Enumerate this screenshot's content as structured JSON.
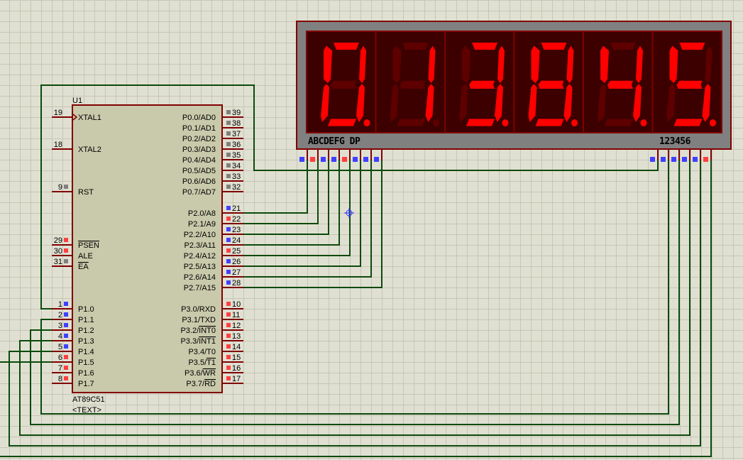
{
  "colors": {
    "wire": "#0b4a0b",
    "pin": "#800000",
    "chip_fill": "#c9c9ab",
    "display_body": "#808080",
    "display_bg": "#3c0000",
    "seg_on": "#ff0000",
    "seg_off": "#5e0000",
    "pin_blue": "#4040ff",
    "pin_red": "#ff4040",
    "pin_grey": "#808080"
  },
  "chip": {
    "ref": "U1",
    "part": "AT89C51",
    "text_placeholder": "<TEXT>",
    "left_pins": [
      {
        "num": "19",
        "label": "XTAL1",
        "state": "clock"
      },
      {
        "num": "18",
        "label": "XTAL2",
        "state": "none"
      },
      {
        "num": "9",
        "label": "RST",
        "state": "grey"
      },
      {
        "num": "29",
        "label": "",
        "bar": "PSEN",
        "state": "red"
      },
      {
        "num": "30",
        "label": "ALE",
        "state": "red"
      },
      {
        "num": "31",
        "label": "",
        "bar": "EA",
        "state": "grey"
      },
      {
        "num": "1",
        "label": "P1.0",
        "state": "blue"
      },
      {
        "num": "2",
        "label": "P1.1",
        "state": "blue"
      },
      {
        "num": "3",
        "label": "P1.2",
        "state": "blue"
      },
      {
        "num": "4",
        "label": "P1.3",
        "state": "blue"
      },
      {
        "num": "5",
        "label": "P1.4",
        "state": "blue"
      },
      {
        "num": "6",
        "label": "P1.5",
        "state": "red"
      },
      {
        "num": "7",
        "label": "P1.6",
        "state": "red"
      },
      {
        "num": "8",
        "label": "P1.7",
        "state": "red"
      }
    ],
    "right_pins": [
      {
        "num": "39",
        "label": "P0.0/AD0",
        "state": "grey"
      },
      {
        "num": "38",
        "label": "P0.1/AD1",
        "state": "grey"
      },
      {
        "num": "37",
        "label": "P0.2/AD2",
        "state": "grey"
      },
      {
        "num": "36",
        "label": "P0.3/AD3",
        "state": "grey"
      },
      {
        "num": "35",
        "label": "P0.4/AD4",
        "state": "grey"
      },
      {
        "num": "34",
        "label": "P0.5/AD5",
        "state": "grey"
      },
      {
        "num": "33",
        "label": "P0.6/AD6",
        "state": "grey"
      },
      {
        "num": "32",
        "label": "P0.7/AD7",
        "state": "grey"
      },
      {
        "num": "21",
        "label": "P2.0/A8",
        "state": "blue"
      },
      {
        "num": "22",
        "label": "P2.1/A9",
        "state": "red"
      },
      {
        "num": "23",
        "label": "P2.2/A10",
        "state": "blue"
      },
      {
        "num": "24",
        "label": "P2.3/A11",
        "state": "blue"
      },
      {
        "num": "25",
        "label": "P2.4/A12",
        "state": "red"
      },
      {
        "num": "26",
        "label": "P2.5/A13",
        "state": "blue"
      },
      {
        "num": "27",
        "label": "P2.6/A14",
        "state": "blue"
      },
      {
        "num": "28",
        "label": "P2.7/A15",
        "state": "blue"
      },
      {
        "num": "10",
        "label": "P3.0/RXD",
        "state": "red"
      },
      {
        "num": "11",
        "label": "P3.1/TXD",
        "state": "red"
      },
      {
        "num": "12",
        "label": "P3.2/",
        "bar": "INT0",
        "state": "red"
      },
      {
        "num": "13",
        "label": "P3.3/",
        "bar": "INT1",
        "state": "red"
      },
      {
        "num": "14",
        "label": "P3.4/T0",
        "state": "red"
      },
      {
        "num": "15",
        "label": "P3.5/",
        "bar": "T1",
        "state": "red"
      },
      {
        "num": "16",
        "label": "P3.6/",
        "bar": "WR",
        "state": "red"
      },
      {
        "num": "17",
        "label": "P3.7/",
        "bar": "RD",
        "state": "red"
      }
    ]
  },
  "display": {
    "segment_label": "ABCDEFG  DP",
    "digit_label": "123456",
    "digits": [
      {
        "value": "0",
        "dp": true
      },
      {
        "value": "1",
        "dp": false
      },
      {
        "value": "3",
        "dp": true
      },
      {
        "value": "8",
        "dp": true
      },
      {
        "value": "4",
        "dp": true
      },
      {
        "value": "5",
        "dp": true
      }
    ],
    "segment_pin_states": [
      "blue",
      "red",
      "blue",
      "blue",
      "red",
      "blue",
      "blue",
      "blue"
    ],
    "digit_pin_states": [
      "blue",
      "blue",
      "blue",
      "blue",
      "blue",
      "red"
    ]
  }
}
